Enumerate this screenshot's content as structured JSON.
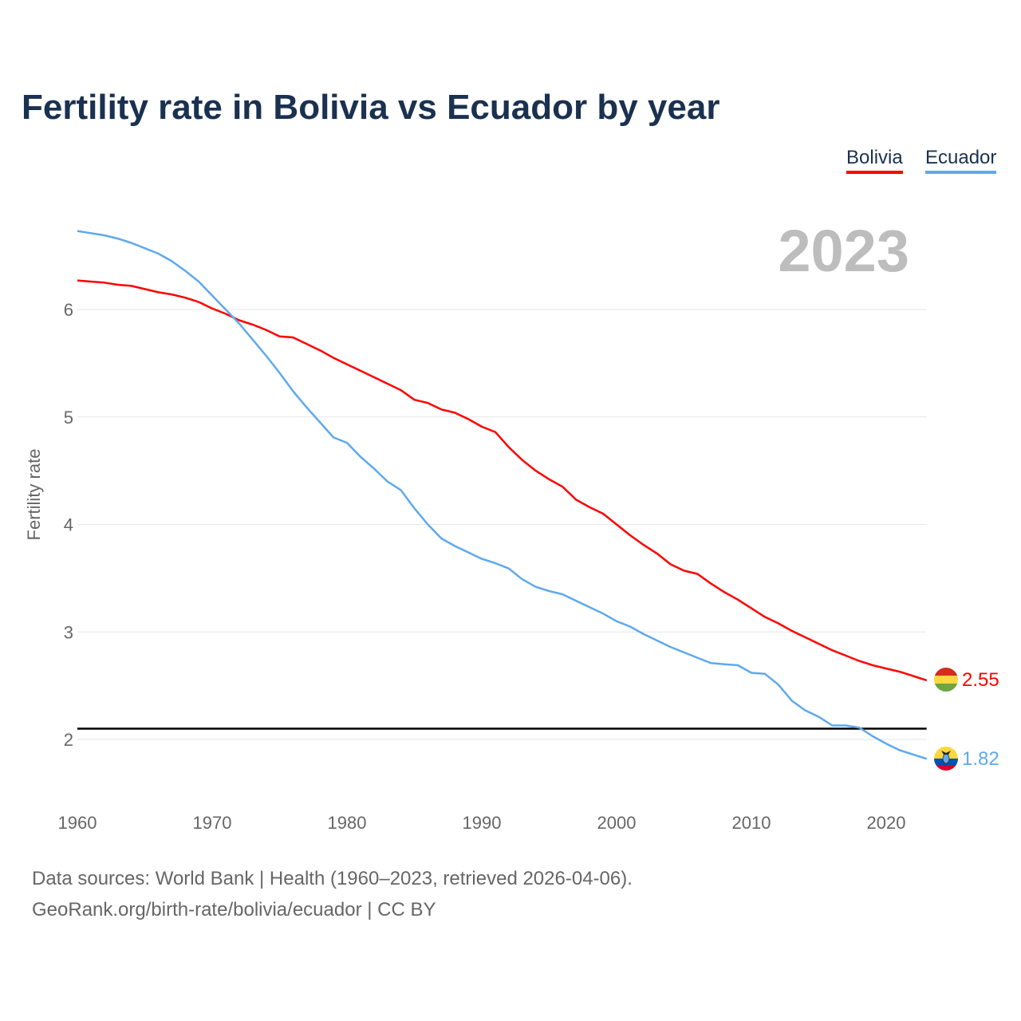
{
  "chart_data": {
    "type": "line",
    "title": "Fertility rate in Bolivia vs Ecuador by year",
    "xlabel": "",
    "ylabel": "Fertility rate",
    "xlim": [
      1960,
      2023
    ],
    "ylim": [
      1.5,
      7
    ],
    "x_ticks": [
      "1960",
      "1970",
      "1980",
      "1990",
      "2000",
      "2010",
      "2020"
    ],
    "y_ticks": [
      "2",
      "3",
      "4",
      "5",
      "6"
    ],
    "grid": true,
    "legend_placement": "top-right",
    "year_label": "2023",
    "reference_line": 2.1,
    "x": [
      1960,
      1961,
      1962,
      1963,
      1964,
      1965,
      1966,
      1967,
      1968,
      1969,
      1970,
      1971,
      1972,
      1973,
      1974,
      1975,
      1976,
      1977,
      1978,
      1979,
      1980,
      1981,
      1982,
      1983,
      1984,
      1985,
      1986,
      1987,
      1988,
      1989,
      1990,
      1991,
      1992,
      1993,
      1994,
      1995,
      1996,
      1997,
      1998,
      1999,
      2000,
      2001,
      2002,
      2003,
      2004,
      2005,
      2006,
      2007,
      2008,
      2009,
      2010,
      2011,
      2012,
      2013,
      2014,
      2015,
      2016,
      2017,
      2018,
      2019,
      2020,
      2021,
      2022,
      2023
    ],
    "series": [
      {
        "name": "Bolivia",
        "color": "#ff0000",
        "end_label": "2.55",
        "values": [
          6.27,
          6.26,
          6.25,
          6.23,
          6.22,
          6.19,
          6.16,
          6.14,
          6.11,
          6.07,
          6.01,
          5.96,
          5.9,
          5.86,
          5.81,
          5.75,
          5.74,
          5.68,
          5.62,
          5.55,
          5.49,
          5.43,
          5.37,
          5.31,
          5.25,
          5.16,
          5.13,
          5.07,
          5.04,
          4.98,
          4.91,
          4.86,
          4.72,
          4.6,
          4.5,
          4.42,
          4.35,
          4.23,
          4.16,
          4.1,
          4.0,
          3.9,
          3.81,
          3.73,
          3.63,
          3.57,
          3.54,
          3.45,
          3.37,
          3.3,
          3.22,
          3.14,
          3.08,
          3.01,
          2.95,
          2.89,
          2.83,
          2.78,
          2.73,
          2.69,
          2.66,
          2.63,
          2.59,
          2.55
        ]
      },
      {
        "name": "Ecuador",
        "color": "#5ea9ee",
        "end_label": "1.82",
        "values": [
          6.73,
          6.71,
          6.69,
          6.66,
          6.62,
          6.57,
          6.52,
          6.45,
          6.36,
          6.26,
          6.13,
          6.0,
          5.87,
          5.72,
          5.57,
          5.41,
          5.24,
          5.09,
          4.95,
          4.81,
          4.76,
          4.63,
          4.52,
          4.4,
          4.32,
          4.15,
          4.0,
          3.87,
          3.8,
          3.74,
          3.68,
          3.64,
          3.59,
          3.49,
          3.42,
          3.38,
          3.35,
          3.29,
          3.23,
          3.17,
          3.1,
          3.05,
          2.98,
          2.92,
          2.86,
          2.81,
          2.76,
          2.71,
          2.7,
          2.69,
          2.62,
          2.61,
          2.51,
          2.36,
          2.27,
          2.21,
          2.13,
          2.13,
          2.11,
          2.03,
          1.96,
          1.9,
          1.86,
          1.82
        ]
      }
    ]
  },
  "footer": {
    "line1": "Data sources: World Bank | Health (1960–2023, retrieved 2026-04-06).",
    "line2": "GeoRank.org/birth-rate/bolivia/ecuador | CC BY"
  }
}
